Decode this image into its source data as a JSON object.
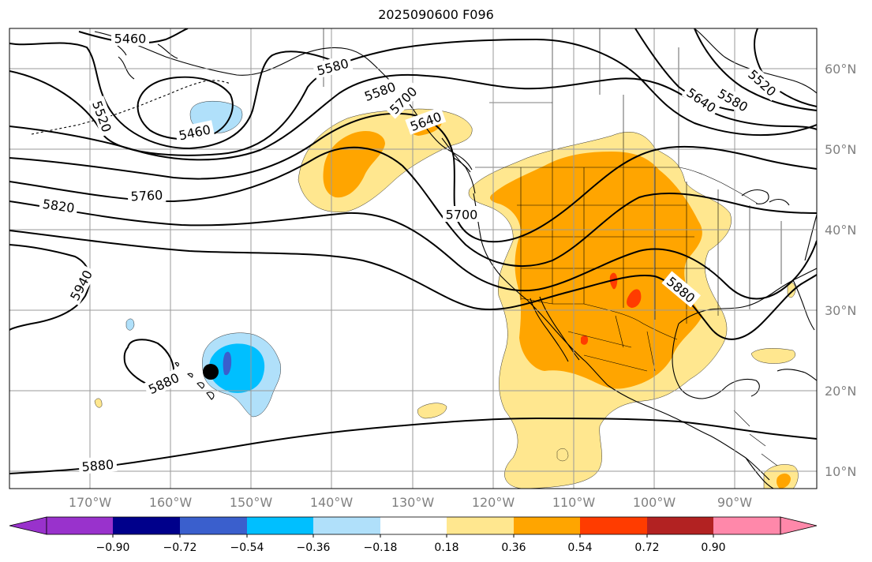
{
  "title": "2025090600 F096",
  "map": {
    "lat_labels": [
      "60°N",
      "50°N",
      "40°N",
      "30°N",
      "20°N",
      "10°N"
    ],
    "lon_labels": [
      "170°W",
      "160°W",
      "150°W",
      "140°W",
      "130°W",
      "120°W",
      "110°W",
      "100°W",
      "90°W"
    ],
    "contour_labels": [
      "5460",
      "5460",
      "5520",
      "5520",
      "5580",
      "5580",
      "5580",
      "5640",
      "5640",
      "5700",
      "5700",
      "5760",
      "5820",
      "5880",
      "5880",
      "5880",
      "5940"
    ],
    "marker": "black-dot"
  },
  "colorbar": {
    "tick_labels": [
      "−0.90",
      "−0.72",
      "−0.54",
      "−0.36",
      "−0.18",
      "0.18",
      "0.36",
      "0.54",
      "0.72",
      "0.90"
    ],
    "colors": [
      "#9932cc",
      "#00008b",
      "#3a5fcd",
      "#00bfff",
      "#b0e0fa",
      "#ffffff",
      "#ffe78f",
      "#ffa500",
      "#ff3c00",
      "#b22222",
      "#ff88aa"
    ]
  }
}
